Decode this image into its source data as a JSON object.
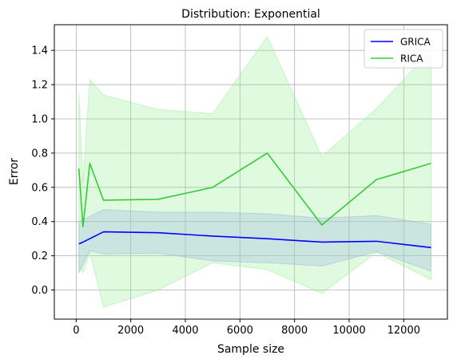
{
  "chart_data": {
    "type": "line",
    "title": "Distribution: Exponential",
    "xlabel": "Sample size",
    "ylabel": "Error",
    "xlim": [
      -800,
      13600
    ],
    "ylim": [
      -0.17,
      1.55
    ],
    "xticks": [
      0,
      2000,
      4000,
      6000,
      8000,
      10000,
      12000
    ],
    "yticks": [
      0.0,
      0.2,
      0.4,
      0.6,
      0.8,
      1.0,
      1.2,
      1.4
    ],
    "grid": true,
    "legend_position": "top-right",
    "series": [
      {
        "name": "GRICA",
        "color": "#0000ff",
        "band_color": "#9999ff",
        "x": [
          100,
          250,
          500,
          1000,
          3000,
          5000,
          7000,
          9000,
          11000,
          13000
        ],
        "y": [
          0.27,
          0.28,
          0.3,
          0.34,
          0.335,
          0.315,
          0.3,
          0.28,
          0.285,
          0.248
        ],
        "lower": [
          0.1,
          0.15,
          0.23,
          0.21,
          0.215,
          0.17,
          0.16,
          0.14,
          0.225,
          0.11
        ],
        "upper": [
          0.4,
          0.41,
          0.43,
          0.47,
          0.455,
          0.455,
          0.445,
          0.42,
          0.435,
          0.385
        ]
      },
      {
        "name": "RICA",
        "color": "#33cc33",
        "band_color": "#99ee99",
        "x": [
          100,
          250,
          500,
          1000,
          3000,
          5000,
          7000,
          9000,
          11000,
          13000
        ],
        "y": [
          0.71,
          0.37,
          0.74,
          0.525,
          0.53,
          0.6,
          0.8,
          0.38,
          0.645,
          0.74
        ],
        "lower": [
          0.14,
          0.1,
          0.22,
          -0.1,
          0.0,
          0.16,
          0.12,
          -0.02,
          0.22,
          0.06
        ],
        "upper": [
          1.15,
          0.62,
          1.23,
          1.14,
          1.055,
          1.03,
          1.48,
          0.78,
          1.06,
          1.4
        ]
      }
    ]
  }
}
